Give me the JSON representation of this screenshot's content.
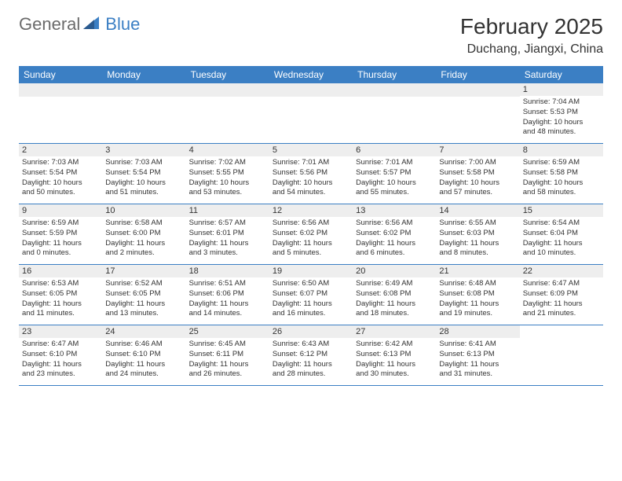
{
  "logo": {
    "part1": "General",
    "part2": "Blue"
  },
  "title": "February 2025",
  "location": "Duchang, Jiangxi, China",
  "colors": {
    "accent": "#3b7fc4",
    "logo_gray": "#6b6b6b",
    "text": "#333333",
    "daynum_bg": "#eeeeee",
    "bg": "#ffffff"
  },
  "weekdays": [
    "Sunday",
    "Monday",
    "Tuesday",
    "Wednesday",
    "Thursday",
    "Friday",
    "Saturday"
  ],
  "weeks": [
    [
      null,
      null,
      null,
      null,
      null,
      null,
      {
        "d": "1",
        "sr": "Sunrise: 7:04 AM",
        "ss": "Sunset: 5:53 PM",
        "dl1": "Daylight: 10 hours",
        "dl2": "and 48 minutes."
      }
    ],
    [
      {
        "d": "2",
        "sr": "Sunrise: 7:03 AM",
        "ss": "Sunset: 5:54 PM",
        "dl1": "Daylight: 10 hours",
        "dl2": "and 50 minutes."
      },
      {
        "d": "3",
        "sr": "Sunrise: 7:03 AM",
        "ss": "Sunset: 5:54 PM",
        "dl1": "Daylight: 10 hours",
        "dl2": "and 51 minutes."
      },
      {
        "d": "4",
        "sr": "Sunrise: 7:02 AM",
        "ss": "Sunset: 5:55 PM",
        "dl1": "Daylight: 10 hours",
        "dl2": "and 53 minutes."
      },
      {
        "d": "5",
        "sr": "Sunrise: 7:01 AM",
        "ss": "Sunset: 5:56 PM",
        "dl1": "Daylight: 10 hours",
        "dl2": "and 54 minutes."
      },
      {
        "d": "6",
        "sr": "Sunrise: 7:01 AM",
        "ss": "Sunset: 5:57 PM",
        "dl1": "Daylight: 10 hours",
        "dl2": "and 55 minutes."
      },
      {
        "d": "7",
        "sr": "Sunrise: 7:00 AM",
        "ss": "Sunset: 5:58 PM",
        "dl1": "Daylight: 10 hours",
        "dl2": "and 57 minutes."
      },
      {
        "d": "8",
        "sr": "Sunrise: 6:59 AM",
        "ss": "Sunset: 5:58 PM",
        "dl1": "Daylight: 10 hours",
        "dl2": "and 58 minutes."
      }
    ],
    [
      {
        "d": "9",
        "sr": "Sunrise: 6:59 AM",
        "ss": "Sunset: 5:59 PM",
        "dl1": "Daylight: 11 hours",
        "dl2": "and 0 minutes."
      },
      {
        "d": "10",
        "sr": "Sunrise: 6:58 AM",
        "ss": "Sunset: 6:00 PM",
        "dl1": "Daylight: 11 hours",
        "dl2": "and 2 minutes."
      },
      {
        "d": "11",
        "sr": "Sunrise: 6:57 AM",
        "ss": "Sunset: 6:01 PM",
        "dl1": "Daylight: 11 hours",
        "dl2": "and 3 minutes."
      },
      {
        "d": "12",
        "sr": "Sunrise: 6:56 AM",
        "ss": "Sunset: 6:02 PM",
        "dl1": "Daylight: 11 hours",
        "dl2": "and 5 minutes."
      },
      {
        "d": "13",
        "sr": "Sunrise: 6:56 AM",
        "ss": "Sunset: 6:02 PM",
        "dl1": "Daylight: 11 hours",
        "dl2": "and 6 minutes."
      },
      {
        "d": "14",
        "sr": "Sunrise: 6:55 AM",
        "ss": "Sunset: 6:03 PM",
        "dl1": "Daylight: 11 hours",
        "dl2": "and 8 minutes."
      },
      {
        "d": "15",
        "sr": "Sunrise: 6:54 AM",
        "ss": "Sunset: 6:04 PM",
        "dl1": "Daylight: 11 hours",
        "dl2": "and 10 minutes."
      }
    ],
    [
      {
        "d": "16",
        "sr": "Sunrise: 6:53 AM",
        "ss": "Sunset: 6:05 PM",
        "dl1": "Daylight: 11 hours",
        "dl2": "and 11 minutes."
      },
      {
        "d": "17",
        "sr": "Sunrise: 6:52 AM",
        "ss": "Sunset: 6:05 PM",
        "dl1": "Daylight: 11 hours",
        "dl2": "and 13 minutes."
      },
      {
        "d": "18",
        "sr": "Sunrise: 6:51 AM",
        "ss": "Sunset: 6:06 PM",
        "dl1": "Daylight: 11 hours",
        "dl2": "and 14 minutes."
      },
      {
        "d": "19",
        "sr": "Sunrise: 6:50 AM",
        "ss": "Sunset: 6:07 PM",
        "dl1": "Daylight: 11 hours",
        "dl2": "and 16 minutes."
      },
      {
        "d": "20",
        "sr": "Sunrise: 6:49 AM",
        "ss": "Sunset: 6:08 PM",
        "dl1": "Daylight: 11 hours",
        "dl2": "and 18 minutes."
      },
      {
        "d": "21",
        "sr": "Sunrise: 6:48 AM",
        "ss": "Sunset: 6:08 PM",
        "dl1": "Daylight: 11 hours",
        "dl2": "and 19 minutes."
      },
      {
        "d": "22",
        "sr": "Sunrise: 6:47 AM",
        "ss": "Sunset: 6:09 PM",
        "dl1": "Daylight: 11 hours",
        "dl2": "and 21 minutes."
      }
    ],
    [
      {
        "d": "23",
        "sr": "Sunrise: 6:47 AM",
        "ss": "Sunset: 6:10 PM",
        "dl1": "Daylight: 11 hours",
        "dl2": "and 23 minutes."
      },
      {
        "d": "24",
        "sr": "Sunrise: 6:46 AM",
        "ss": "Sunset: 6:10 PM",
        "dl1": "Daylight: 11 hours",
        "dl2": "and 24 minutes."
      },
      {
        "d": "25",
        "sr": "Sunrise: 6:45 AM",
        "ss": "Sunset: 6:11 PM",
        "dl1": "Daylight: 11 hours",
        "dl2": "and 26 minutes."
      },
      {
        "d": "26",
        "sr": "Sunrise: 6:43 AM",
        "ss": "Sunset: 6:12 PM",
        "dl1": "Daylight: 11 hours",
        "dl2": "and 28 minutes."
      },
      {
        "d": "27",
        "sr": "Sunrise: 6:42 AM",
        "ss": "Sunset: 6:13 PM",
        "dl1": "Daylight: 11 hours",
        "dl2": "and 30 minutes."
      },
      {
        "d": "28",
        "sr": "Sunrise: 6:41 AM",
        "ss": "Sunset: 6:13 PM",
        "dl1": "Daylight: 11 hours",
        "dl2": "and 31 minutes."
      },
      null
    ]
  ]
}
